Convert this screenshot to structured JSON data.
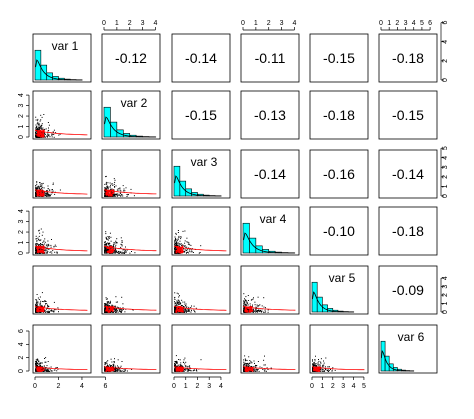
{
  "chart_data": {
    "type": "scatter",
    "variables": [
      "var 1",
      "var 2",
      "var 3",
      "var 4",
      "var 5",
      "var 6"
    ],
    "correlations": [
      [
        null,
        "-0.12",
        "-0.14",
        "-0.11",
        "-0.15",
        "-0.18"
      ],
      [
        null,
        null,
        "-0.15",
        "-0.13",
        "-0.18",
        "-0.15"
      ],
      [
        null,
        null,
        null,
        "-0.14",
        "-0.16",
        "-0.14"
      ],
      [
        null,
        null,
        null,
        null,
        "-0.10",
        "-0.18"
      ],
      [
        null,
        null,
        null,
        null,
        null,
        "-0.09"
      ],
      [
        null,
        null,
        null,
        null,
        null,
        null
      ]
    ],
    "var_ranges": [
      [
        0,
        4.6
      ],
      [
        0,
        4.2
      ],
      [
        0,
        4.6
      ],
      [
        0,
        4.2
      ],
      [
        0,
        5.2
      ],
      [
        0,
        6.6
      ]
    ],
    "axes": {
      "top": [
        {
          "col": 1,
          "ticks": [
            "0",
            "1",
            "2",
            "3",
            "4"
          ],
          "values": [
            0,
            1,
            2,
            3,
            4
          ]
        },
        {
          "col": 3,
          "ticks": [
            "0",
            "1",
            "2",
            "3",
            "4"
          ],
          "values": [
            0,
            1,
            2,
            3,
            4
          ]
        },
        {
          "col": 5,
          "ticks": [
            "0",
            "1",
            "2",
            "3",
            "4",
            "5",
            "6"
          ],
          "values": [
            0,
            1,
            2,
            3,
            4,
            5,
            6
          ]
        }
      ],
      "bottom": [
        {
          "col": 0,
          "ticks": [
            "0",
            "2",
            "4",
            "6"
          ],
          "values": [
            0,
            2,
            4,
            6
          ]
        },
        {
          "col": 2,
          "ticks": [
            "0",
            "1",
            "2",
            "3",
            "4"
          ],
          "values": [
            0,
            1,
            2,
            3,
            4
          ]
        },
        {
          "col": 4,
          "ticks": [
            "0",
            "1",
            "2",
            "3",
            "4",
            "5"
          ],
          "values": [
            0,
            1,
            2,
            3,
            4,
            5
          ]
        }
      ],
      "left": [
        {
          "row": 1,
          "ticks": [
            "0",
            "1",
            "2",
            "3",
            "4"
          ],
          "values": [
            0,
            1,
            2,
            3,
            4
          ]
        },
        {
          "row": 3,
          "ticks": [
            "0",
            "1",
            "2",
            "3",
            "4"
          ],
          "values": [
            0,
            1,
            2,
            3,
            4
          ]
        },
        {
          "row": 5,
          "ticks": [
            "0",
            "2",
            "4",
            "6"
          ],
          "values": [
            0,
            2,
            4,
            6
          ]
        }
      ],
      "right": [
        {
          "row": 0,
          "ticks": [
            "0",
            "2",
            "4",
            "6"
          ],
          "values": [
            0,
            2,
            4,
            6
          ]
        },
        {
          "row": 2,
          "ticks": [
            "0",
            "1",
            "2",
            "3",
            "4",
            "5"
          ],
          "values": [
            0,
            1,
            2,
            3,
            4,
            5
          ]
        },
        {
          "row": 4,
          "ticks": [
            "0",
            "1",
            "2",
            "3",
            "4"
          ],
          "values": [
            0,
            1,
            2,
            3,
            4
          ]
        }
      ]
    },
    "histogram_bins": [
      0,
      0.5,
      1,
      1.5,
      2,
      2.5,
      3,
      3.5,
      4
    ],
    "histogram_relative_heights": [
      1.0,
      0.5,
      0.24,
      0.12,
      0.06,
      0.03,
      0.015,
      0.008
    ],
    "colors": {
      "histogram_fill": "#00ffff",
      "points": "#000000",
      "dense_points": "#ff0000",
      "smooth_line": "#ff0000",
      "density_line": "#000000",
      "frame": "#000000"
    }
  }
}
